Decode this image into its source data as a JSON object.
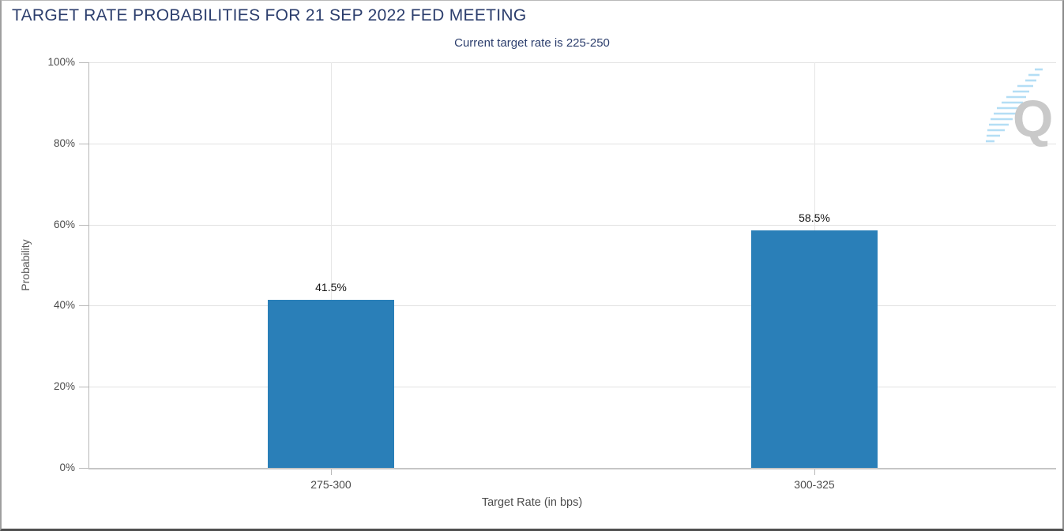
{
  "chart_data": {
    "type": "bar",
    "title": "TARGET RATE PROBABILITIES FOR 21 SEP 2022 FED MEETING",
    "subtitle": "Current target rate is 225-250",
    "categories": [
      "275-300",
      "300-325"
    ],
    "values": [
      41.5,
      58.5
    ],
    "value_labels": [
      "41.5%",
      "58.5%"
    ],
    "xlabel": "Target Rate (in bps)",
    "ylabel": "Probability",
    "ylim": [
      0,
      100
    ],
    "yticks": [
      0,
      20,
      40,
      60,
      80,
      100
    ],
    "ytick_suffix": "%",
    "grid": "on",
    "legend": "none",
    "bar_color": "#2a7fb8",
    "title_color": "#2c3e6d",
    "watermark_letter": "Q"
  }
}
